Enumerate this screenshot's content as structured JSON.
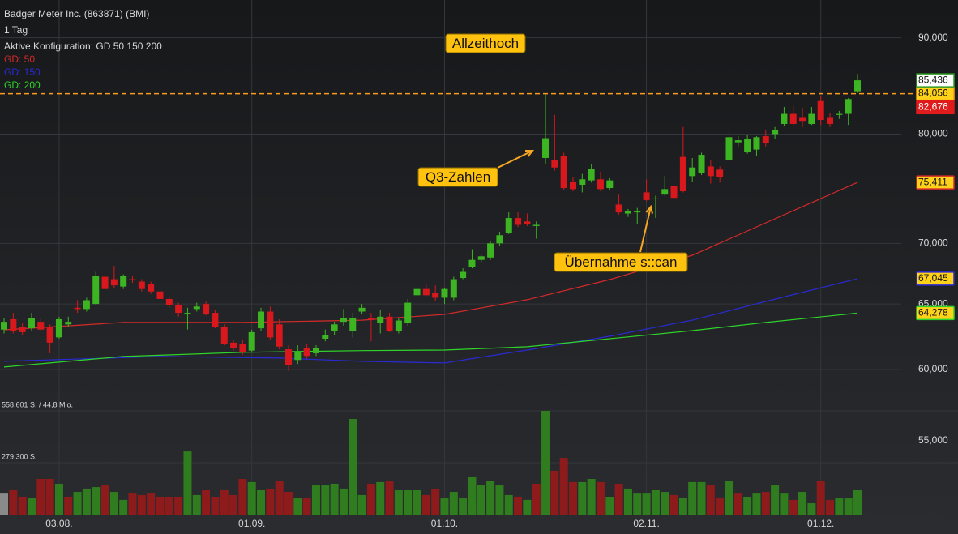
{
  "chart_data": {
    "type": "candlestick",
    "title": "Badger Meter Inc. (863871) (BMI)",
    "subtitle": "1 Tag",
    "config": "Aktive Konfiguration: GD 50 150 200",
    "categories": [
      null,
      null,
      null,
      null,
      null,
      null,
      "03.08.",
      null,
      null,
      null,
      null,
      null,
      null,
      null,
      null,
      null,
      null,
      null,
      null,
      null,
      null,
      null,
      null,
      null,
      null,
      null,
      null,
      "01.09.",
      null,
      null,
      null,
      null,
      null,
      null,
      null,
      null,
      null,
      null,
      null,
      null,
      null,
      null,
      null,
      null,
      null,
      null,
      null,
      null,
      "01.10.",
      null,
      null,
      null,
      null,
      null,
      null,
      null,
      null,
      null,
      null,
      null,
      null,
      null,
      null,
      null,
      null,
      null,
      null,
      null,
      null,
      null,
      "02.11.",
      null,
      null,
      null,
      null,
      null,
      null,
      null,
      null,
      null,
      null,
      null,
      null,
      null,
      null,
      null,
      null,
      null,
      null,
      "01.12.",
      null,
      null,
      null,
      null
    ],
    "open": [
      63000,
      63800,
      63200,
      63100,
      63600,
      63200,
      62400,
      63400,
      64700,
      64600,
      65000,
      67200,
      67000,
      66400,
      67000,
      66800,
      66600,
      66000,
      65400,
      64900,
      64200,
      64600,
      65000,
      64300,
      63200,
      62000,
      61900,
      61400,
      63100,
      64400,
      63400,
      61500,
      60700,
      61600,
      61200,
      62300,
      62900,
      63600,
      62900,
      64400,
      63900,
      63500,
      64000,
      62900,
      63500,
      65700,
      66200,
      65900,
      65500,
      65500,
      67100,
      68000,
      68600,
      68800,
      70000,
      70900,
      72200,
      71900,
      71500,
      77700,
      77500,
      77900,
      75500,
      75200,
      75600,
      75700,
      74900,
      73400,
      72600,
      72700,
      74500,
      73900,
      74300,
      75100,
      77800,
      76000,
      76300,
      76900,
      76600,
      77500,
      79200,
      78300,
      78500,
      79800,
      80000,
      81000,
      82000,
      81600,
      81000,
      83300,
      81600,
      81900,
      82000,
      84300
    ],
    "high": [
      63900,
      64300,
      63500,
      64300,
      63900,
      63400,
      64000,
      64000,
      65300,
      65500,
      67600,
      67500,
      68100,
      67400,
      67300,
      67000,
      66800,
      66200,
      65600,
      65100,
      64700,
      65100,
      65200,
      64500,
      63400,
      62200,
      62200,
      63000,
      64700,
      64800,
      63800,
      61800,
      61800,
      61900,
      61800,
      63000,
      63600,
      64600,
      64300,
      65000,
      64300,
      64500,
      64300,
      63900,
      65400,
      66400,
      66600,
      66500,
      66300,
      67200,
      67900,
      69500,
      69000,
      70200,
      71000,
      72700,
      72700,
      72600,
      71900,
      84000,
      81900,
      78200,
      75900,
      76200,
      77100,
      76400,
      75800,
      74300,
      73000,
      73100,
      75700,
      74200,
      76000,
      75500,
      80700,
      77700,
      78200,
      77500,
      76900,
      80600,
      79800,
      79900,
      79800,
      80400,
      80700,
      82700,
      82800,
      82600,
      82700,
      83800,
      82100,
      82300,
      83600,
      86100
    ],
    "low": [
      62700,
      62700,
      62600,
      62900,
      62900,
      61200,
      62300,
      63200,
      64300,
      64400,
      64900,
      66100,
      66300,
      66200,
      66700,
      66000,
      65800,
      65300,
      64700,
      64000,
      63000,
      64400,
      64100,
      63100,
      61800,
      61400,
      61100,
      61300,
      62900,
      62200,
      61500,
      59900,
      60400,
      60800,
      61000,
      62100,
      62600,
      63300,
      62400,
      64200,
      62100,
      62700,
      62800,
      62700,
      63300,
      65500,
      65600,
      65200,
      65000,
      65300,
      67000,
      67900,
      68400,
      68600,
      69800,
      70800,
      71400,
      71500,
      70400,
      77100,
      76500,
      74700,
      74600,
      74500,
      75400,
      74600,
      74700,
      72500,
      72300,
      71700,
      73700,
      72200,
      74200,
      73700,
      74500,
      75500,
      76100,
      75300,
      75400,
      77400,
      78800,
      78100,
      77900,
      78800,
      79500,
      80800,
      80800,
      80700,
      80900,
      80900,
      80700,
      81500,
      80900,
      84100
    ],
    "close": [
      63600,
      62900,
      62800,
      63900,
      63000,
      62000,
      63800,
      63600,
      64600,
      65300,
      67300,
      66200,
      66500,
      67300,
      66900,
      66200,
      66000,
      65400,
      64900,
      64300,
      64300,
      64800,
      64200,
      63200,
      61900,
      61600,
      61300,
      62800,
      64400,
      62400,
      61700,
      60300,
      61300,
      61000,
      61600,
      62600,
      63400,
      63900,
      63900,
      64700,
      63800,
      64000,
      62900,
      63700,
      65100,
      66200,
      65700,
      65500,
      66200,
      67000,
      67600,
      68600,
      68900,
      70000,
      70700,
      72200,
      71600,
      71700,
      71600,
      79600,
      76800,
      74900,
      74800,
      75700,
      76700,
      74800,
      75600,
      72700,
      72800,
      72800,
      73800,
      73950,
      74800,
      74000,
      74600,
      76800,
      78000,
      76000,
      75900,
      79700,
      79400,
      79500,
      79700,
      79100,
      80400,
      82000,
      81000,
      81300,
      82000,
      81400,
      81000,
      82000,
      83500,
      85436
    ],
    "volume": [
      113000,
      131000,
      96000,
      87000,
      192000,
      192000,
      166000,
      96000,
      122000,
      140000,
      148000,
      157000,
      122000,
      79000,
      113000,
      105000,
      113000,
      96000,
      96000,
      96000,
      340000,
      105000,
      131000,
      96000,
      131000,
      105000,
      192000,
      175000,
      131000,
      140000,
      183000,
      122000,
      87000,
      87000,
      157000,
      157000,
      166000,
      140000,
      515000,
      105000,
      166000,
      175000,
      183000,
      131000,
      131000,
      131000,
      105000,
      140000,
      87000,
      122000,
      87000,
      201000,
      157000,
      183000,
      157000,
      105000,
      96000,
      79000,
      166000,
      558601,
      236000,
      305000,
      175000,
      175000,
      192000,
      175000,
      96000,
      166000,
      140000,
      113000,
      113000,
      131000,
      122000,
      105000,
      87000,
      175000,
      175000,
      157000,
      87000,
      183000,
      113000,
      96000,
      113000,
      122000,
      157000,
      113000,
      79000,
      122000,
      61000,
      183000,
      79000,
      87000,
      87000,
      131000
    ],
    "up_color": "#3db523",
    "down_color": "#d8181c",
    "volume_up_color": "#2f7d1e",
    "volume_down_color": "#8e1b1b",
    "volume_neutral_color": "#8a8a8a",
    "log_scale": true,
    "grid": true,
    "ylim": [
      50250,
      94250
    ],
    "yticks": [
      {
        "value": 55000,
        "label": "55,000"
      },
      {
        "value": 60000,
        "label": "60,000"
      },
      {
        "value": 65000,
        "label": "65,000"
      },
      {
        "value": 70000,
        "label": "70,000"
      },
      {
        "value": 80000,
        "label": "80,000"
      },
      {
        "value": 90000,
        "label": "90,000"
      }
    ],
    "volume_ylim": [
      0,
      558601
    ],
    "volume_ticks": [
      {
        "value": 558601,
        "label": "558.601 S. / 44,8 Mio."
      },
      {
        "value": 279300,
        "label": "279.300 S."
      }
    ],
    "series": [
      {
        "name": "GD: 50",
        "color": "#d42a2a",
        "x": [
          0,
          13,
          26,
          39,
          48,
          57,
          66,
          75,
          83,
          93
        ],
        "values": [
          62980,
          63550,
          63550,
          63730,
          64180,
          65340,
          66970,
          68990,
          71780,
          75411
        ],
        "value_labels": [
          null,
          null,
          null,
          null,
          null,
          null,
          null,
          null,
          null,
          "75,411"
        ]
      },
      {
        "name": "GD: 150",
        "color": "#2a2ad4",
        "x": [
          0,
          17,
          30,
          39,
          48,
          57,
          66,
          75,
          83,
          93
        ],
        "values": [
          60600,
          60960,
          60840,
          60600,
          60480,
          61440,
          62490,
          63730,
          65200,
          67045
        ],
        "value_labels": [
          null,
          null,
          null,
          null,
          null,
          null,
          null,
          null,
          null,
          "67,045"
        ]
      },
      {
        "name": "GD: 200",
        "color": "#2fd42a",
        "x": [
          0,
          13,
          26,
          39,
          48,
          57,
          66,
          75,
          83,
          93
        ],
        "values": [
          60180,
          60960,
          61270,
          61400,
          61440,
          61690,
          62300,
          62920,
          63550,
          64278
        ],
        "value_labels": [
          null,
          null,
          null,
          null,
          null,
          null,
          null,
          null,
          null,
          "64,278"
        ]
      }
    ],
    "reference_line": {
      "value": 84056,
      "label": "84,056",
      "color": "#ff9a1a"
    },
    "price_markers": [
      {
        "value": 85436,
        "label": "85,436",
        "color": "#2f9e22"
      },
      {
        "value": 82676,
        "label": "82,676",
        "color": "#e01b1b"
      }
    ],
    "annotations": [
      {
        "text": "Allzeithoch"
      },
      {
        "text": "Q3-Zahlen"
      },
      {
        "text": "Übernahme s::can"
      }
    ]
  }
}
